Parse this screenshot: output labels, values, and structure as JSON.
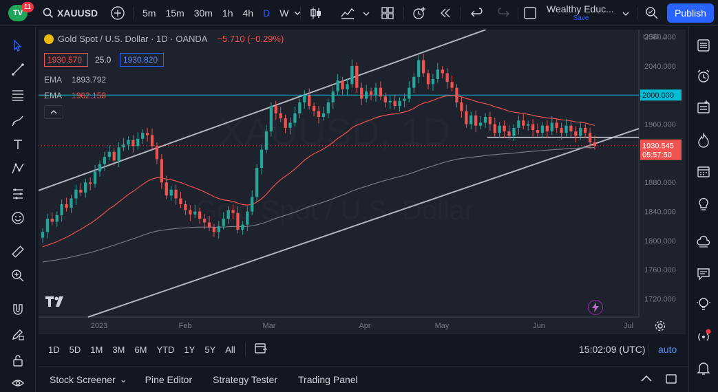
{
  "header": {
    "logo_text": "TV",
    "notification_count": "11",
    "symbol": "XAUUSD",
    "intervals": [
      "5m",
      "15m",
      "30m",
      "1h",
      "4h",
      "D",
      "W"
    ],
    "active_interval": "D",
    "layout_name": "Wealthy Educ...",
    "layout_status": "Save",
    "publish_label": "Publish"
  },
  "legend": {
    "title": "Gold Spot / U.S. Dollar · 1D · OANDA",
    "change": "−5.710 (−0.29%)",
    "bid": "1930.570",
    "spread": "25.0",
    "ask": "1930.820",
    "ema1_label": "EMA",
    "ema1_value": "1893.792",
    "ema2_label": "EMA",
    "ema2_value": "1962.158"
  },
  "chart_data": {
    "type": "candlestick",
    "currency": "USD",
    "y_ticks": [
      2080,
      2040,
      2000,
      1960,
      1920,
      1880,
      1840,
      1800,
      1760,
      1720
    ],
    "y_tick_labels": [
      "2080.000",
      "2040.000",
      "2000.000",
      "1960.000",
      "",
      "1880.000",
      "1840.000",
      "1800.000",
      "1760.000",
      "1720.000"
    ],
    "ylim": [
      1695,
      2090
    ],
    "x_labels": [
      "2023",
      "Feb",
      "Mar",
      "Apr",
      "May",
      "Jun",
      "Jul"
    ],
    "horizontal_level": 2000.0,
    "horizontal_level_label": "2000.000",
    "last_price": 1930.545,
    "last_price_label": "1930.545",
    "countdown": "05:57:50",
    "closes": [
      1812,
      1830,
      1826,
      1835,
      1850,
      1845,
      1858,
      1870,
      1866,
      1880,
      1878,
      1895,
      1905,
      1915,
      1922,
      1910,
      1928,
      1932,
      1938,
      1930,
      1940,
      1948,
      1945,
      1930,
      1912,
      1880,
      1862,
      1870,
      1858,
      1850,
      1842,
      1836,
      1840,
      1830,
      1825,
      1818,
      1812,
      1820,
      1830,
      1842,
      1838,
      1815,
      1822,
      1840,
      1860,
      1900,
      1925,
      1950,
      1985,
      1975,
      1968,
      1955,
      1962,
      1975,
      1990,
      2000,
      1985,
      1978,
      1970,
      1975,
      1990,
      2005,
      2020,
      2008,
      2015,
      2040,
      2010,
      1995,
      2005,
      2000,
      2010,
      1998,
      1990,
      1992,
      1985,
      1992,
      1995,
      2010,
      2025,
      2048,
      2030,
      2015,
      2022,
      2035,
      2030,
      2018,
      2010,
      1990,
      1978,
      1960,
      1972,
      1958,
      1962,
      1970,
      1960,
      1948,
      1958,
      1950,
      1944,
      1955,
      1965,
      1958,
      1960,
      1952,
      1948,
      1958,
      1950,
      1962,
      1955,
      1948,
      1958,
      1950,
      1944,
      1955,
      1948,
      1935,
      1930
    ]
  },
  "timeframes": [
    "1D",
    "5D",
    "1M",
    "3M",
    "6M",
    "YTD",
    "1Y",
    "5Y",
    "All"
  ],
  "clock": "15:02:09 (UTC)",
  "auto_label": "auto",
  "panels": [
    "Stock Screener",
    "Pine Editor",
    "Strategy Tester",
    "Trading Panel"
  ],
  "colors": {
    "bull": "#26a69a",
    "bear": "#ef5350",
    "accent": "#2962ff",
    "level_line": "#00bcd4"
  }
}
